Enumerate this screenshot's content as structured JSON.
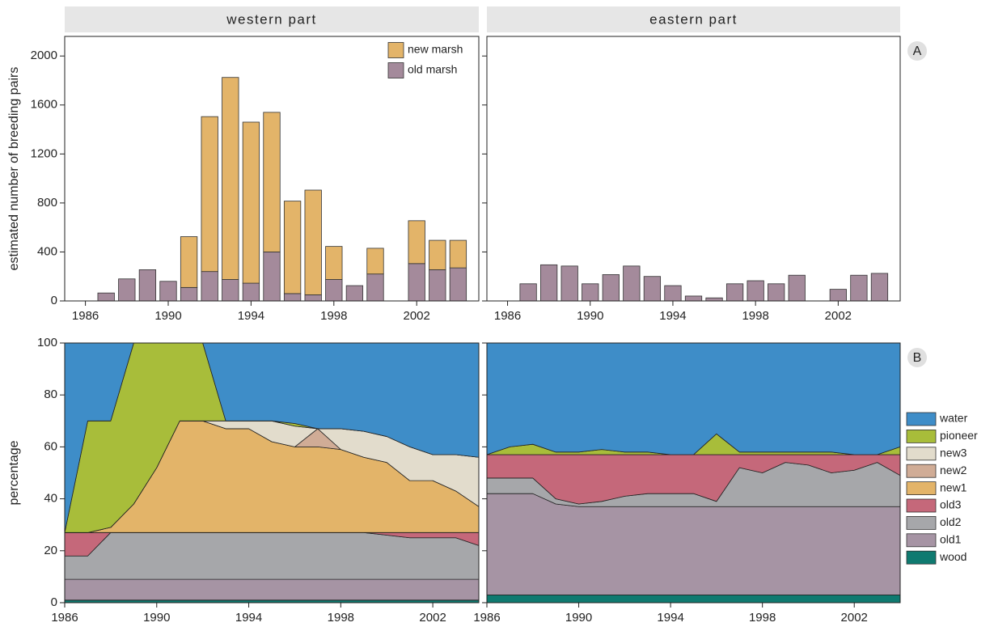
{
  "chart_data": [
    {
      "type": "bar",
      "title": "western part",
      "ylabel": "estimated number of breeding pairs",
      "annotation": "A",
      "x": [
        1987,
        1988,
        1989,
        1990,
        1991,
        1992,
        1993,
        1994,
        1995,
        1996,
        1997,
        1998,
        1999,
        2000,
        2001,
        2002,
        2003,
        2004
      ],
      "series": [
        {
          "name": "old marsh",
          "color": "#a48a9b",
          "values": [
            65,
            180,
            255,
            160,
            110,
            240,
            175,
            145,
            400,
            60,
            50,
            175,
            125,
            220,
            null,
            305,
            255,
            270
          ]
        },
        {
          "name": "new marsh",
          "color": "#e3b469",
          "values": [
            0,
            0,
            0,
            0,
            415,
            1265,
            1650,
            1315,
            1140,
            755,
            855,
            270,
            0,
            210,
            null,
            350,
            240,
            225
          ]
        }
      ],
      "xlim": [
        1985,
        2005
      ],
      "xticks": [
        1986,
        1990,
        1994,
        1998,
        2002
      ],
      "ylim": [
        0,
        2160
      ],
      "yticks": [
        0,
        400,
        800,
        1200,
        1600,
        2000
      ],
      "legend": "upper right"
    },
    {
      "type": "bar",
      "title": "eastern part",
      "x": [
        1987,
        1988,
        1989,
        1990,
        1991,
        1992,
        1993,
        1994,
        1995,
        1996,
        1997,
        1998,
        1999,
        2000,
        2001,
        2002,
        2003,
        2004
      ],
      "series": [
        {
          "color": "#a48a9b",
          "values": [
            140,
            295,
            285,
            140,
            215,
            285,
            200,
            125,
            40,
            25,
            140,
            165,
            140,
            210,
            null,
            95,
            210,
            225
          ]
        }
      ],
      "xlim": [
        1985,
        2005
      ],
      "xticks": [
        1986,
        1990,
        1994,
        1998,
        2002
      ],
      "ylim": [
        0,
        2160
      ],
      "yticks": [
        0,
        400,
        800,
        1200,
        1600,
        2000
      ],
      "ytick_labels": false
    },
    {
      "type": "area",
      "ylabel": "percentage",
      "x": [
        1986,
        1987,
        1988,
        1989,
        1990,
        1991,
        1992,
        1993,
        1994,
        1995,
        1996,
        1997,
        1998,
        1999,
        2000,
        2001,
        2002,
        2003,
        2004
      ],
      "series": [
        {
          "name": "wood",
          "color": "#0f7a70",
          "values": [
            1,
            1,
            1,
            1,
            1,
            1,
            1,
            1,
            1,
            1,
            1,
            1,
            1,
            1,
            1,
            1,
            1,
            1,
            1
          ]
        },
        {
          "name": "old1",
          "color": "#a694a4",
          "values": [
            8,
            8,
            8,
            8,
            8,
            8,
            8,
            8,
            8,
            8,
            8,
            8,
            8,
            8,
            8,
            8,
            8,
            8,
            8
          ]
        },
        {
          "name": "old2",
          "color": "#a6a7aa",
          "values": [
            9,
            9,
            18,
            18,
            18,
            18,
            18,
            18,
            18,
            18,
            18,
            18,
            18,
            18,
            17,
            16,
            16,
            16,
            13
          ]
        },
        {
          "name": "old3",
          "color": "#c5687a",
          "values": [
            9,
            9,
            0,
            0,
            0,
            0,
            0,
            0,
            0,
            0,
            0,
            0,
            0,
            0,
            1,
            2,
            2,
            2,
            5
          ]
        },
        {
          "name": "new1",
          "color": "#e3b469",
          "values": [
            0,
            0,
            2,
            11,
            25,
            43,
            43,
            40,
            40,
            35,
            33,
            33,
            32,
            29,
            27,
            20,
            20,
            16,
            10
          ]
        },
        {
          "name": "new2",
          "color": "#d0ac96",
          "values": [
            0,
            0,
            0,
            0,
            0,
            0,
            0,
            0,
            0,
            0,
            0,
            7,
            0,
            0,
            0,
            0,
            0,
            0,
            0
          ]
        },
        {
          "name": "new3",
          "color": "#e2dccc",
          "values": [
            0,
            0,
            0,
            0,
            0,
            0,
            0,
            3,
            3,
            8,
            8,
            0,
            8,
            10,
            10,
            13,
            10,
            14,
            19
          ]
        },
        {
          "name": "pioneer",
          "color": "#a8bd3a",
          "values": [
            0,
            43,
            41,
            62,
            48,
            30,
            30,
            0,
            0,
            0,
            1,
            0,
            0,
            0,
            0,
            0,
            0,
            0,
            0
          ]
        },
        {
          "name": "water",
          "color": "#3e8dc8",
          "values": [
            73,
            30,
            30,
            0,
            0,
            0,
            0,
            30,
            30,
            30,
            31,
            33,
            33,
            34,
            36,
            40,
            43,
            43,
            44
          ]
        }
      ],
      "xlim": [
        1986,
        2004
      ],
      "xticks": [
        1986,
        1990,
        1994,
        1998,
        2002
      ],
      "ylim": [
        0,
        100
      ],
      "yticks": [
        0,
        20,
        40,
        60,
        80,
        100
      ]
    },
    {
      "type": "area",
      "annotation": "B",
      "x": [
        1986,
        1987,
        1988,
        1989,
        1990,
        1991,
        1992,
        1993,
        1994,
        1995,
        1996,
        1997,
        1998,
        1999,
        2000,
        2001,
        2002,
        2003,
        2004
      ],
      "series": [
        {
          "name": "wood",
          "color": "#0f7a70",
          "values": [
            3,
            3,
            3,
            3,
            3,
            3,
            3,
            3,
            3,
            3,
            3,
            3,
            3,
            3,
            3,
            3,
            3,
            3,
            3
          ]
        },
        {
          "name": "old1",
          "color": "#a694a4",
          "values": [
            39,
            39,
            39,
            35,
            34,
            34,
            34,
            34,
            34,
            34,
            34,
            34,
            34,
            34,
            34,
            34,
            34,
            34,
            34
          ]
        },
        {
          "name": "old2",
          "color": "#a6a7aa",
          "values": [
            6,
            6,
            6,
            2,
            1,
            2,
            4,
            5,
            5,
            5,
            2,
            15,
            13,
            17,
            16,
            13,
            14,
            17,
            12
          ]
        },
        {
          "name": "old3",
          "color": "#c5687a",
          "values": [
            9,
            9,
            9,
            17,
            19,
            18,
            16,
            15,
            15,
            15,
            18,
            5,
            7,
            3,
            4,
            7,
            6,
            3,
            8
          ]
        },
        {
          "name": "new1",
          "color": "#e3b469",
          "values": [
            0,
            0,
            0,
            0,
            0,
            0,
            0,
            0,
            0,
            0,
            0,
            0,
            0,
            0,
            0,
            0,
            0,
            0,
            0
          ]
        },
        {
          "name": "new2",
          "color": "#d0ac96",
          "values": [
            0,
            0,
            0,
            0,
            0,
            0,
            0,
            0,
            0,
            0,
            0,
            0,
            0,
            0,
            0,
            0,
            0,
            0,
            0
          ]
        },
        {
          "name": "new3",
          "color": "#e2dccc",
          "values": [
            0,
            0,
            0,
            0,
            0,
            0,
            0,
            0,
            0,
            0,
            0,
            0,
            0,
            0,
            0,
            0,
            0,
            0,
            0
          ]
        },
        {
          "name": "pioneer",
          "color": "#a8bd3a",
          "values": [
            0,
            3,
            4,
            1,
            1,
            2,
            1,
            1,
            0,
            0,
            8,
            1,
            1,
            1,
            1,
            1,
            0,
            0,
            3
          ]
        },
        {
          "name": "water",
          "color": "#3e8dc8",
          "values": [
            43,
            40,
            39,
            42,
            42,
            41,
            42,
            42,
            43,
            43,
            35,
            42,
            42,
            42,
            42,
            42,
            43,
            43,
            40
          ]
        }
      ],
      "xlim": [
        1986,
        2004
      ],
      "xticks": [
        1986,
        1990,
        1994,
        1998,
        2002
      ],
      "ylim": [
        0,
        100
      ],
      "yticks": [
        0,
        20,
        40,
        60,
        80,
        100
      ],
      "ytick_labels": false,
      "legend": "right"
    }
  ]
}
